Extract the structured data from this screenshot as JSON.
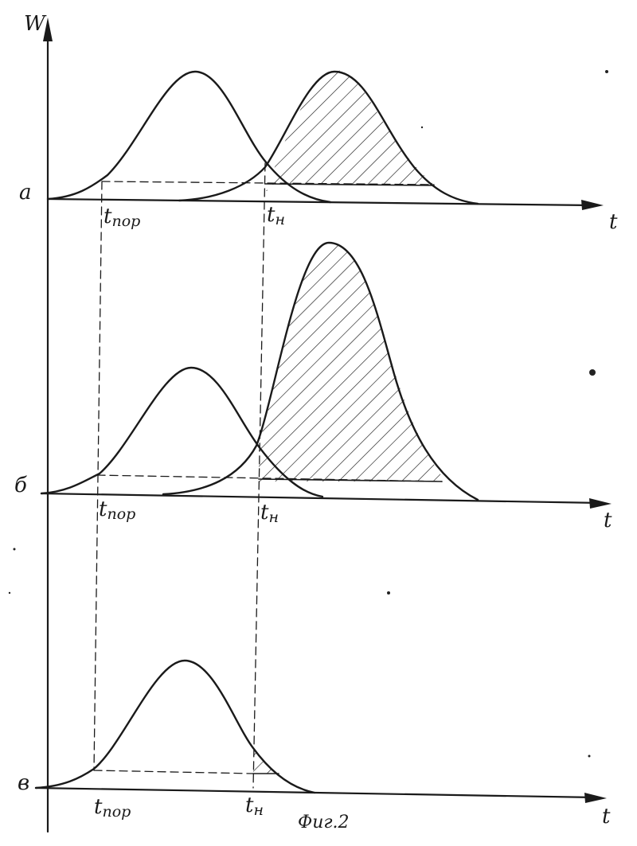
{
  "figure": {
    "y_axis_label": "W",
    "x_axis_label": "t",
    "caption": "Фиг.2",
    "panels": [
      {
        "id": "a",
        "label": "а",
        "threshold_label": "t",
        "threshold_sub": "пор",
        "start_label": "t",
        "start_sub": "н"
      },
      {
        "id": "b",
        "label": "б",
        "threshold_label": "t",
        "threshold_sub": "пор",
        "start_label": "t",
        "start_sub": "н"
      },
      {
        "id": "v",
        "label": "в",
        "threshold_label": "t",
        "threshold_sub": "пор",
        "start_label": "t",
        "start_sub": "н"
      }
    ]
  },
  "colors": {
    "ink": "#1a1a1a",
    "paper": "#ffffff"
  }
}
